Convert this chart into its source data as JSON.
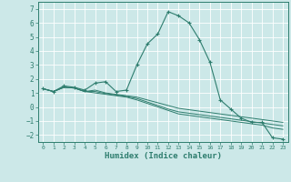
{
  "xlabel": "Humidex (Indice chaleur)",
  "ylabel": "",
  "background_color": "#cce8e8",
  "grid_color": "#ffffff",
  "line_color": "#2e7d6e",
  "xlim": [
    -0.5,
    23.5
  ],
  "ylim": [
    -2.5,
    7.5
  ],
  "xticks": [
    0,
    1,
    2,
    3,
    4,
    5,
    6,
    7,
    8,
    9,
    10,
    11,
    12,
    13,
    14,
    15,
    16,
    17,
    18,
    19,
    20,
    21,
    22,
    23
  ],
  "yticks": [
    -2,
    -1,
    0,
    1,
    2,
    3,
    4,
    5,
    6,
    7
  ],
  "series": [
    {
      "x": [
        0,
        1,
        2,
        3,
        4,
        5,
        6,
        7,
        8,
        9,
        10,
        11,
        12,
        13,
        14,
        15,
        16,
        17,
        18,
        19,
        20,
        21,
        22,
        23
      ],
      "y": [
        1.3,
        1.1,
        1.5,
        1.4,
        1.2,
        1.7,
        1.8,
        1.1,
        1.2,
        3.0,
        4.5,
        5.2,
        6.8,
        6.5,
        6.0,
        4.8,
        3.2,
        0.5,
        -0.15,
        -0.8,
        -1.1,
        -1.1,
        -2.2,
        -2.3
      ],
      "marker": "+"
    },
    {
      "x": [
        0,
        1,
        2,
        3,
        4,
        5,
        6,
        7,
        8,
        9,
        10,
        11,
        12,
        13,
        14,
        15,
        16,
        17,
        18,
        19,
        20,
        21,
        22,
        23
      ],
      "y": [
        1.3,
        1.1,
        1.4,
        1.35,
        1.1,
        1.2,
        1.0,
        0.9,
        0.8,
        0.7,
        0.5,
        0.3,
        0.1,
        -0.1,
        -0.2,
        -0.3,
        -0.4,
        -0.5,
        -0.6,
        -0.7,
        -0.8,
        -0.9,
        -1.0,
        -1.1
      ],
      "marker": null
    },
    {
      "x": [
        0,
        1,
        2,
        3,
        4,
        5,
        6,
        7,
        8,
        9,
        10,
        11,
        12,
        13,
        14,
        15,
        16,
        17,
        18,
        19,
        20,
        21,
        22,
        23
      ],
      "y": [
        1.3,
        1.1,
        1.4,
        1.35,
        1.1,
        1.1,
        0.95,
        0.85,
        0.75,
        0.6,
        0.35,
        0.1,
        -0.15,
        -0.35,
        -0.45,
        -0.55,
        -0.65,
        -0.75,
        -0.85,
        -0.95,
        -1.05,
        -1.15,
        -1.25,
        -1.35
      ],
      "marker": null
    },
    {
      "x": [
        0,
        1,
        2,
        3,
        4,
        5,
        6,
        7,
        8,
        9,
        10,
        11,
        12,
        13,
        14,
        15,
        16,
        17,
        18,
        19,
        20,
        21,
        22,
        23
      ],
      "y": [
        1.3,
        1.1,
        1.4,
        1.35,
        1.1,
        1.0,
        0.9,
        0.8,
        0.7,
        0.5,
        0.25,
        0.0,
        -0.25,
        -0.5,
        -0.6,
        -0.7,
        -0.8,
        -0.9,
        -1.0,
        -1.1,
        -1.2,
        -1.3,
        -1.5,
        -1.6
      ],
      "marker": null
    }
  ]
}
